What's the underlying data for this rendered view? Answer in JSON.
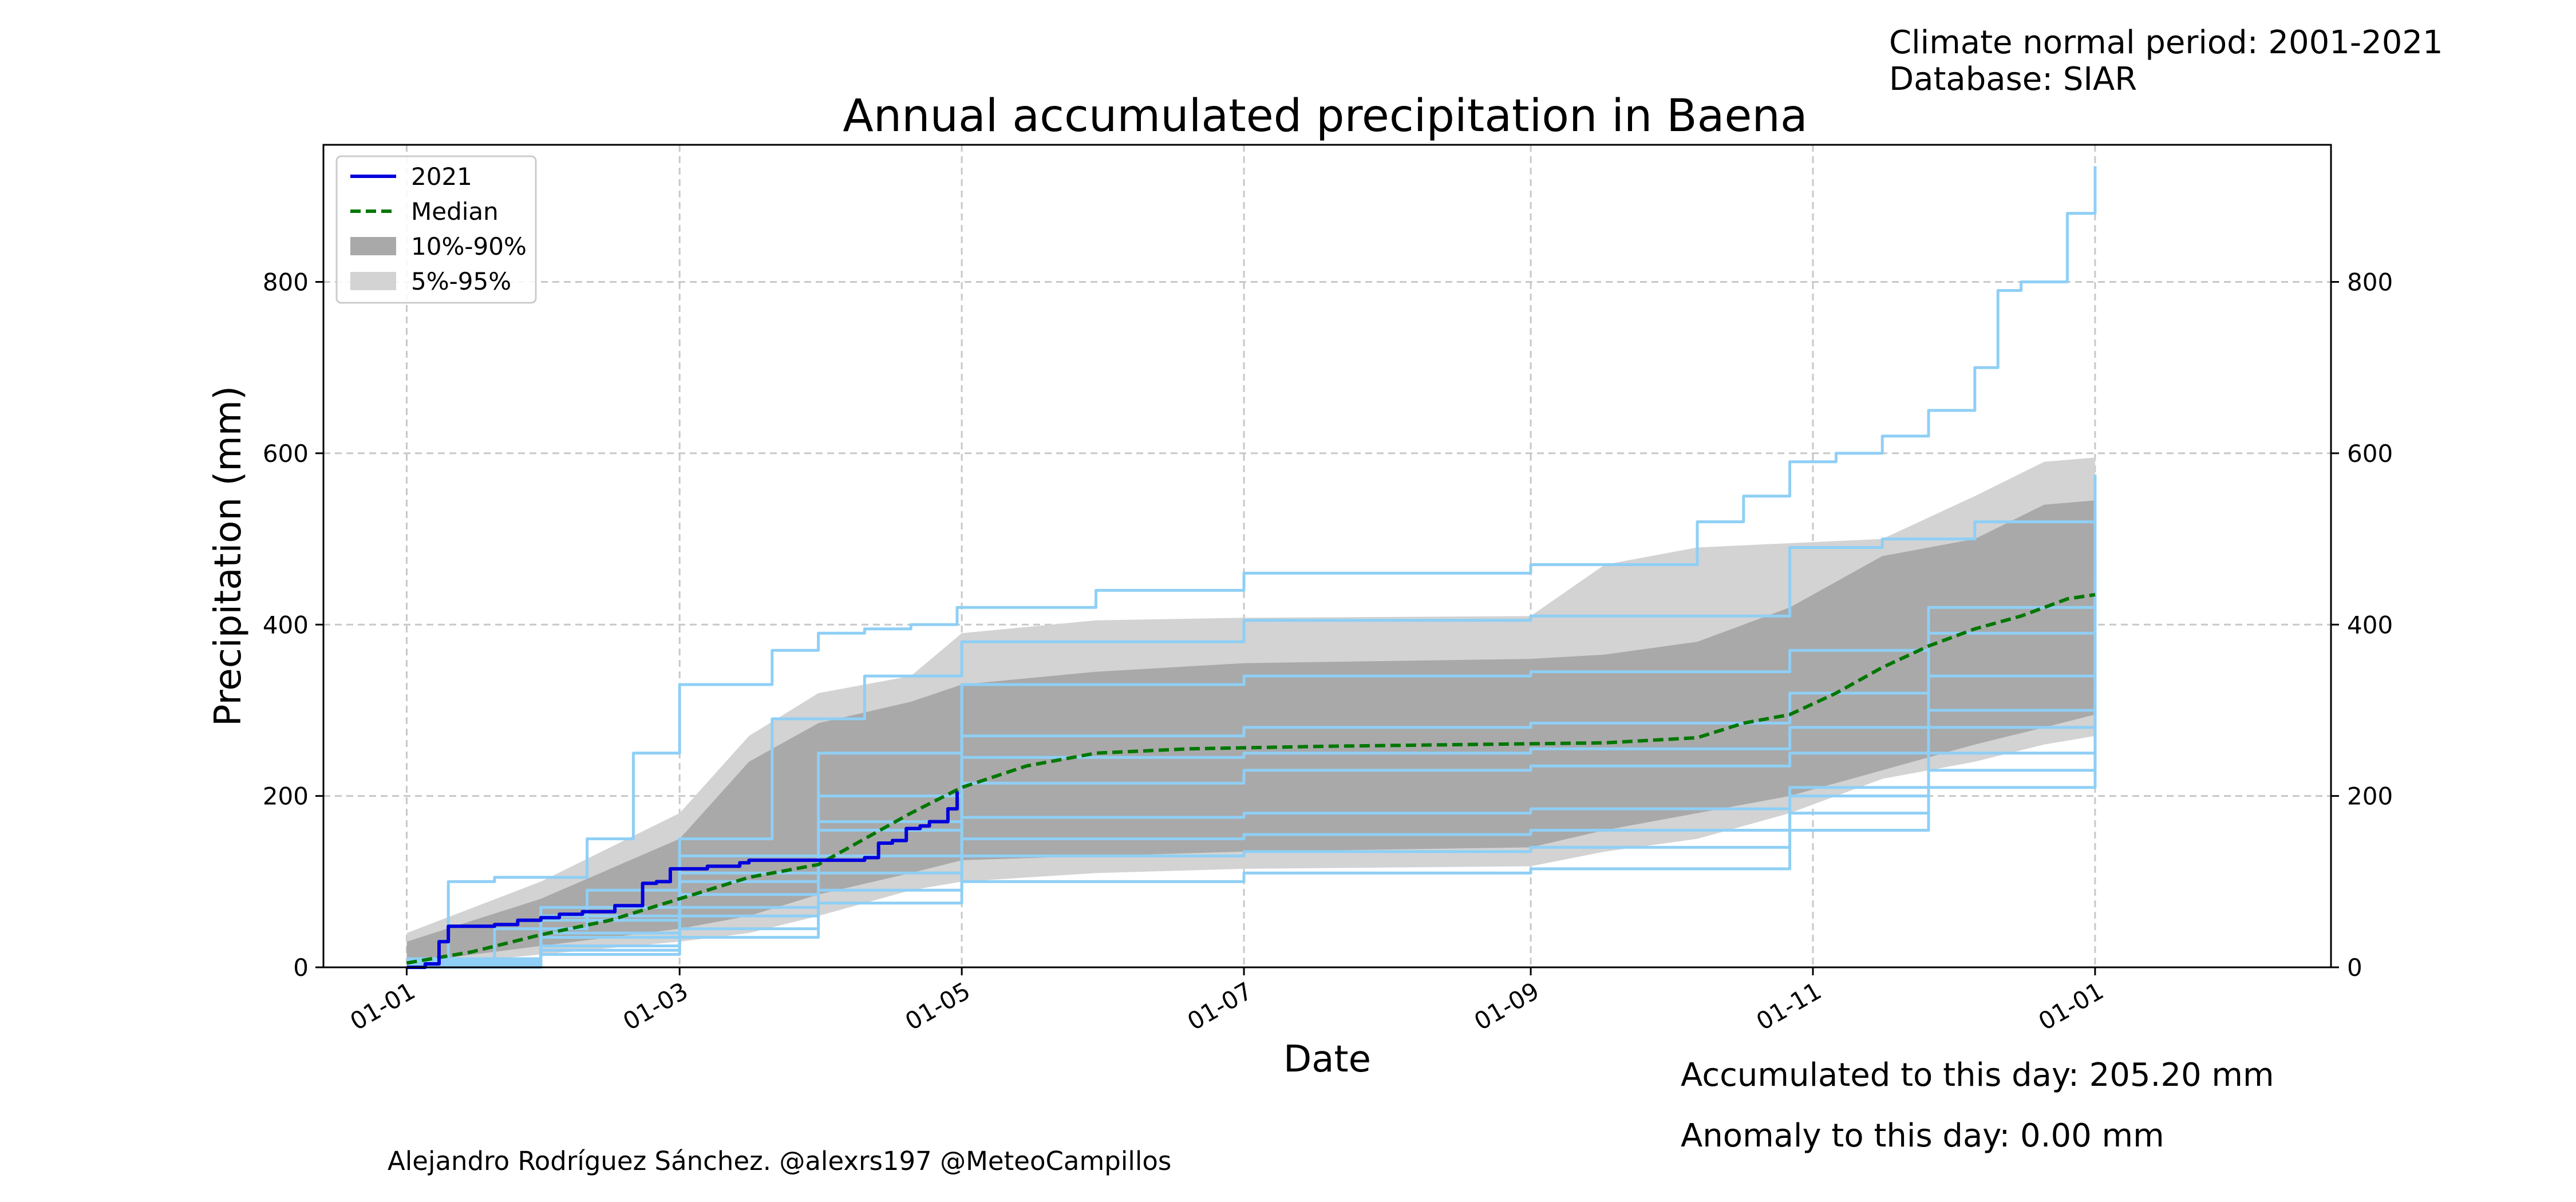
{
  "header": {
    "period_text": "Climate normal period: 2001-2021",
    "database_text": "Database: SIAR"
  },
  "footer": {
    "accumulated_text": "Accumulated to this day: 205.20 mm",
    "anomaly_text": "Anomaly to this day: 0.00 mm",
    "credit_text": "Alejandro Rodríguez Sánchez. @alexrs197 @MeteoCampillos"
  },
  "colors": {
    "current_year": "#0000dd",
    "median": "#007700",
    "band_10_90": "#a9a9a9",
    "band_5_95": "#d3d3d3",
    "historical_years": "#8fcff5",
    "grid": "#c8c8c8"
  },
  "chart_data": {
    "type": "line",
    "title": "Annual accumulated precipitation in Baena",
    "xlabel": "Date",
    "ylabel": "Precipitation (mm)",
    "x_tick_labels": [
      "01-01",
      "01-03",
      "01-05",
      "01-07",
      "01-09",
      "01-11",
      "01-01"
    ],
    "x_tick_days": [
      1,
      60,
      121,
      182,
      244,
      305,
      366
    ],
    "xlim_days": [
      -17,
      417
    ],
    "y_ticks": [
      0,
      200,
      400,
      600,
      800
    ],
    "ylim": [
      0,
      960
    ],
    "grid": true,
    "legend_position": "top-left",
    "legend": [
      "2021",
      "Median",
      "10%-90%",
      "5%-95%"
    ],
    "current_year": {
      "name": "2021",
      "days": [
        1,
        5,
        8,
        10,
        14,
        20,
        25,
        30,
        34,
        37,
        39,
        43,
        46,
        50,
        52,
        55,
        58,
        62,
        66,
        69,
        73,
        75,
        80,
        84,
        88,
        92,
        95,
        100,
        103,
        106,
        109,
        112,
        114,
        118,
        120
      ],
      "values": [
        0,
        4,
        30,
        48,
        48,
        50,
        55,
        58,
        62,
        62,
        65,
        65,
        72,
        72,
        98,
        100,
        115,
        115,
        118,
        118,
        122,
        125,
        125,
        125,
        125,
        125,
        125,
        128,
        145,
        148,
        162,
        165,
        170,
        185,
        205.2
      ]
    },
    "median": {
      "name": "Median",
      "days": [
        1,
        15,
        30,
        45,
        60,
        75,
        90,
        100,
        110,
        121,
        135,
        150,
        170,
        200,
        230,
        260,
        280,
        290,
        300,
        310,
        320,
        330,
        340,
        350,
        360,
        366
      ],
      "values": [
        5,
        18,
        38,
        55,
        80,
        105,
        120,
        150,
        180,
        210,
        235,
        250,
        255,
        258,
        260,
        262,
        268,
        285,
        295,
        320,
        350,
        375,
        395,
        410,
        430,
        435
      ]
    },
    "band_5_95": {
      "name": "5%-95%",
      "days": [
        1,
        30,
        60,
        75,
        90,
        110,
        121,
        150,
        182,
        244,
        260,
        280,
        300,
        320,
        340,
        355,
        366
      ],
      "upper": [
        40,
        100,
        180,
        270,
        320,
        340,
        390,
        405,
        408,
        410,
        470,
        490,
        495,
        500,
        550,
        590,
        595
      ],
      "lower": [
        0,
        15,
        30,
        40,
        60,
        90,
        100,
        110,
        115,
        118,
        135,
        150,
        180,
        220,
        240,
        260,
        270
      ]
    },
    "band_10_90": {
      "name": "10%-90%",
      "days": [
        1,
        30,
        60,
        75,
        90,
        110,
        121,
        150,
        182,
        244,
        260,
        280,
        300,
        320,
        340,
        355,
        366
      ],
      "upper": [
        30,
        80,
        150,
        240,
        285,
        310,
        330,
        345,
        355,
        360,
        365,
        380,
        420,
        480,
        500,
        540,
        545
      ],
      "lower": [
        5,
        25,
        45,
        60,
        85,
        110,
        125,
        130,
        135,
        140,
        160,
        180,
        200,
        230,
        260,
        280,
        295
      ]
    },
    "historical_years": [
      {
        "days": [
          1,
          10,
          20,
          40,
          50,
          60,
          80,
          90,
          100,
          110,
          120,
          150,
          182,
          244,
          280,
          290,
          300,
          310,
          320,
          330,
          340,
          345,
          350,
          360,
          366
        ],
        "values": [
          0,
          100,
          105,
          150,
          250,
          330,
          370,
          390,
          395,
          400,
          420,
          440,
          460,
          470,
          520,
          550,
          590,
          600,
          620,
          650,
          700,
          790,
          800,
          880,
          935
        ]
      },
      {
        "days": [
          1,
          20,
          40,
          60,
          80,
          100,
          121,
          182,
          244,
          270,
          300,
          320,
          340,
          366
        ],
        "values": [
          5,
          45,
          90,
          150,
          290,
          340,
          380,
          405,
          410,
          410,
          490,
          500,
          520,
          575
        ]
      },
      {
        "days": [
          1,
          30,
          60,
          90,
          121,
          182,
          244,
          300,
          330,
          366
        ],
        "values": [
          10,
          60,
          110,
          170,
          215,
          230,
          235,
          250,
          300,
          525
        ]
      },
      {
        "days": [
          1,
          30,
          60,
          90,
          121,
          182,
          244,
          300,
          330,
          366
        ],
        "values": [
          2,
          35,
          70,
          130,
          175,
          180,
          185,
          210,
          250,
          300
        ]
      },
      {
        "days": [
          1,
          30,
          60,
          90,
          121,
          182,
          244,
          300,
          330,
          366
        ],
        "values": [
          0,
          25,
          60,
          90,
          130,
          135,
          140,
          180,
          210,
          255
        ]
      },
      {
        "days": [
          1,
          30,
          60,
          90,
          121,
          182,
          244,
          300,
          330,
          366
        ],
        "values": [
          8,
          70,
          130,
          250,
          330,
          340,
          345,
          370,
          420,
          480
        ]
      },
      {
        "days": [
          1,
          30,
          60,
          90,
          121,
          182,
          244,
          300,
          330,
          366
        ],
        "values": [
          3,
          40,
          85,
          160,
          245,
          250,
          255,
          280,
          340,
          460
        ]
      },
      {
        "days": [
          1,
          30,
          60,
          90,
          121,
          182,
          244,
          300,
          330,
          366
        ],
        "values": [
          1,
          20,
          45,
          110,
          150,
          155,
          160,
          200,
          280,
          380
        ]
      },
      {
        "days": [
          1,
          30,
          60,
          90,
          121,
          182,
          244,
          300,
          330,
          366
        ],
        "values": [
          6,
          55,
          100,
          200,
          270,
          280,
          285,
          320,
          390,
          440
        ]
      },
      {
        "days": [
          1,
          30,
          60,
          90,
          121,
          182,
          244,
          300,
          330,
          366
        ],
        "values": [
          0,
          15,
          35,
          75,
          100,
          110,
          115,
          160,
          230,
          330
        ]
      }
    ]
  }
}
